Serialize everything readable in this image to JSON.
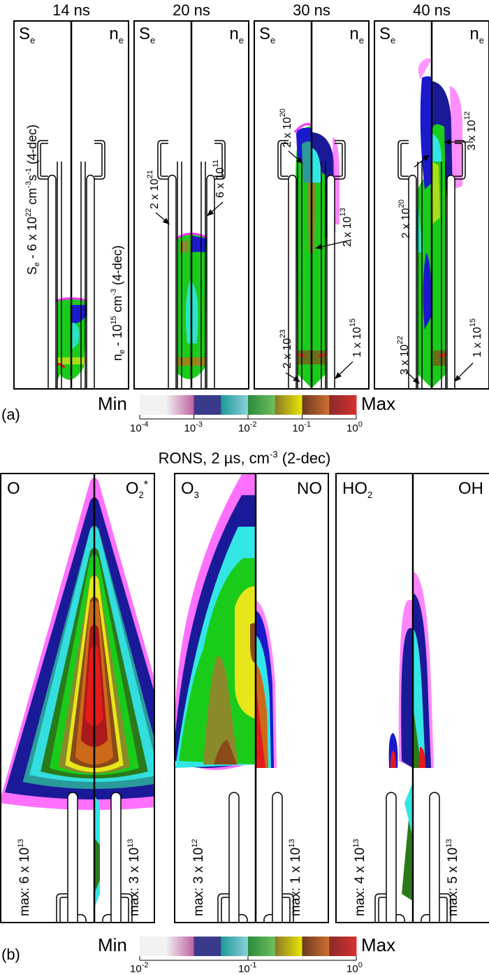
{
  "figure": {
    "part_a": {
      "label": "(a)",
      "panels": [
        {
          "time": "14 ns",
          "left_species": "S",
          "left_sub": "e",
          "right_species": "n",
          "right_sub": "e",
          "scale_left": {
            "prefix": "S",
            "sub": "e",
            "text": " - 6 x 10",
            "exp": "22",
            "unit": " cm",
            "unit_exp": "-3",
            "unit2": "s",
            "unit2_exp": "-1",
            "suffix": " (4-dec)"
          },
          "scale_right": {
            "prefix": "n",
            "sub": "e",
            "text": " - 10",
            "exp": "15",
            "unit": " cm",
            "unit_exp": "-3",
            "suffix": " (4-dec)"
          }
        },
        {
          "time": "20 ns",
          "left_species": "S",
          "left_sub": "e",
          "right_species": "n",
          "right_sub": "e",
          "annotations": [
            {
              "mantissa": "2 x 10",
              "exp": "21"
            },
            {
              "mantissa": "6 x 10",
              "exp": "11"
            }
          ]
        },
        {
          "time": "30 ns",
          "left_species": "S",
          "left_sub": "e",
          "right_species": "n",
          "right_sub": "e",
          "annotations": [
            {
              "mantissa": "2 x 10",
              "exp": "20"
            },
            {
              "mantissa": "2 x 10",
              "exp": "13"
            },
            {
              "mantissa": "2 x 10",
              "exp": "23"
            },
            {
              "mantissa": "1 x 10",
              "exp": "15"
            }
          ]
        },
        {
          "time": "40 ns",
          "left_species": "S",
          "left_sub": "e",
          "right_species": "n",
          "right_sub": "e",
          "annotations": [
            {
              "mantissa": "3 x 10",
              "exp": "12"
            },
            {
              "mantissa": "2 x 10",
              "exp": "20"
            },
            {
              "mantissa": "3 x 10",
              "exp": "22"
            },
            {
              "mantissa": "1 x 10",
              "exp": "15"
            }
          ]
        }
      ],
      "colorbar": {
        "min_label": "Min",
        "max_label": "Max",
        "ticks": [
          {
            "base": "10",
            "exp": "-4"
          },
          {
            "base": "10",
            "exp": "-3"
          },
          {
            "base": "10",
            "exp": "-2"
          },
          {
            "base": "10",
            "exp": "-1"
          },
          {
            "base": "10",
            "exp": "0"
          }
        ],
        "colors": [
          "#f2f2f2",
          "#c060a0",
          "#3a3a8a",
          "#1a9a9a",
          "#8fd0d8",
          "#2a8a3a",
          "#70c060",
          "#8a7a2a",
          "#e8e800",
          "#6a3a20",
          "#d07030",
          "#8a2a2a",
          "#d83030"
        ]
      }
    },
    "part_b": {
      "label": "(b)",
      "title": {
        "text": "RONS, 2 ",
        "mu": "µ",
        "text2": "s, cm",
        "exp": "-3",
        "suffix": " (2-dec)"
      },
      "panels": [
        {
          "left": {
            "species": "O",
            "sub": "",
            "sup": ""
          },
          "right": {
            "species": "O",
            "sub": "2",
            "sup": "*"
          },
          "max_left": {
            "text": "max: 6 x 10",
            "exp": "13"
          },
          "max_right": {
            "text": "max: 3 x 10",
            "exp": "13"
          }
        },
        {
          "left": {
            "species": "O",
            "sub": "3",
            "sup": ""
          },
          "right": {
            "species": "NO",
            "sub": "",
            "sup": ""
          },
          "max_left": {
            "text": "max: 3 x 10",
            "exp": "12"
          },
          "max_right": {
            "text": "max: 1 x 10",
            "exp": "13"
          }
        },
        {
          "left": {
            "species": "HO",
            "sub": "2",
            "sup": ""
          },
          "right": {
            "species": "OH",
            "sub": "",
            "sup": ""
          },
          "max_left": {
            "text": "max: 4 x 10",
            "exp": "13"
          },
          "max_right": {
            "text": "max: 5 x 10",
            "exp": "13"
          }
        }
      ],
      "colorbar": {
        "min_label": "Min",
        "max_label": "Max",
        "ticks": [
          {
            "base": "10",
            "exp": "-2"
          },
          {
            "base": "10",
            "exp": "-1"
          },
          {
            "base": "10",
            "exp": "0"
          }
        ],
        "colors": [
          "#f2f2f2",
          "#c060a0",
          "#3a3a8a",
          "#1a9a9a",
          "#8fd0d8",
          "#2a8a3a",
          "#70c060",
          "#8a7a2a",
          "#e8e800",
          "#6a3a20",
          "#d07030",
          "#8a2a2a",
          "#d83030"
        ]
      }
    },
    "contour_palette": {
      "magenta": "#ff33ff",
      "blue": "#1a1acc",
      "darkblue": "#1a1a99",
      "cyan": "#33e6e6",
      "teal": "#2a9a9a",
      "green": "#1acc1a",
      "darkgreen": "#2a7a1a",
      "olive": "#8a8a2a",
      "yellow": "#e6e61a",
      "brown": "#8a4a1a",
      "orange": "#cc6a1a",
      "red": "#e61a1a",
      "darkred": "#aa1a1a"
    }
  }
}
